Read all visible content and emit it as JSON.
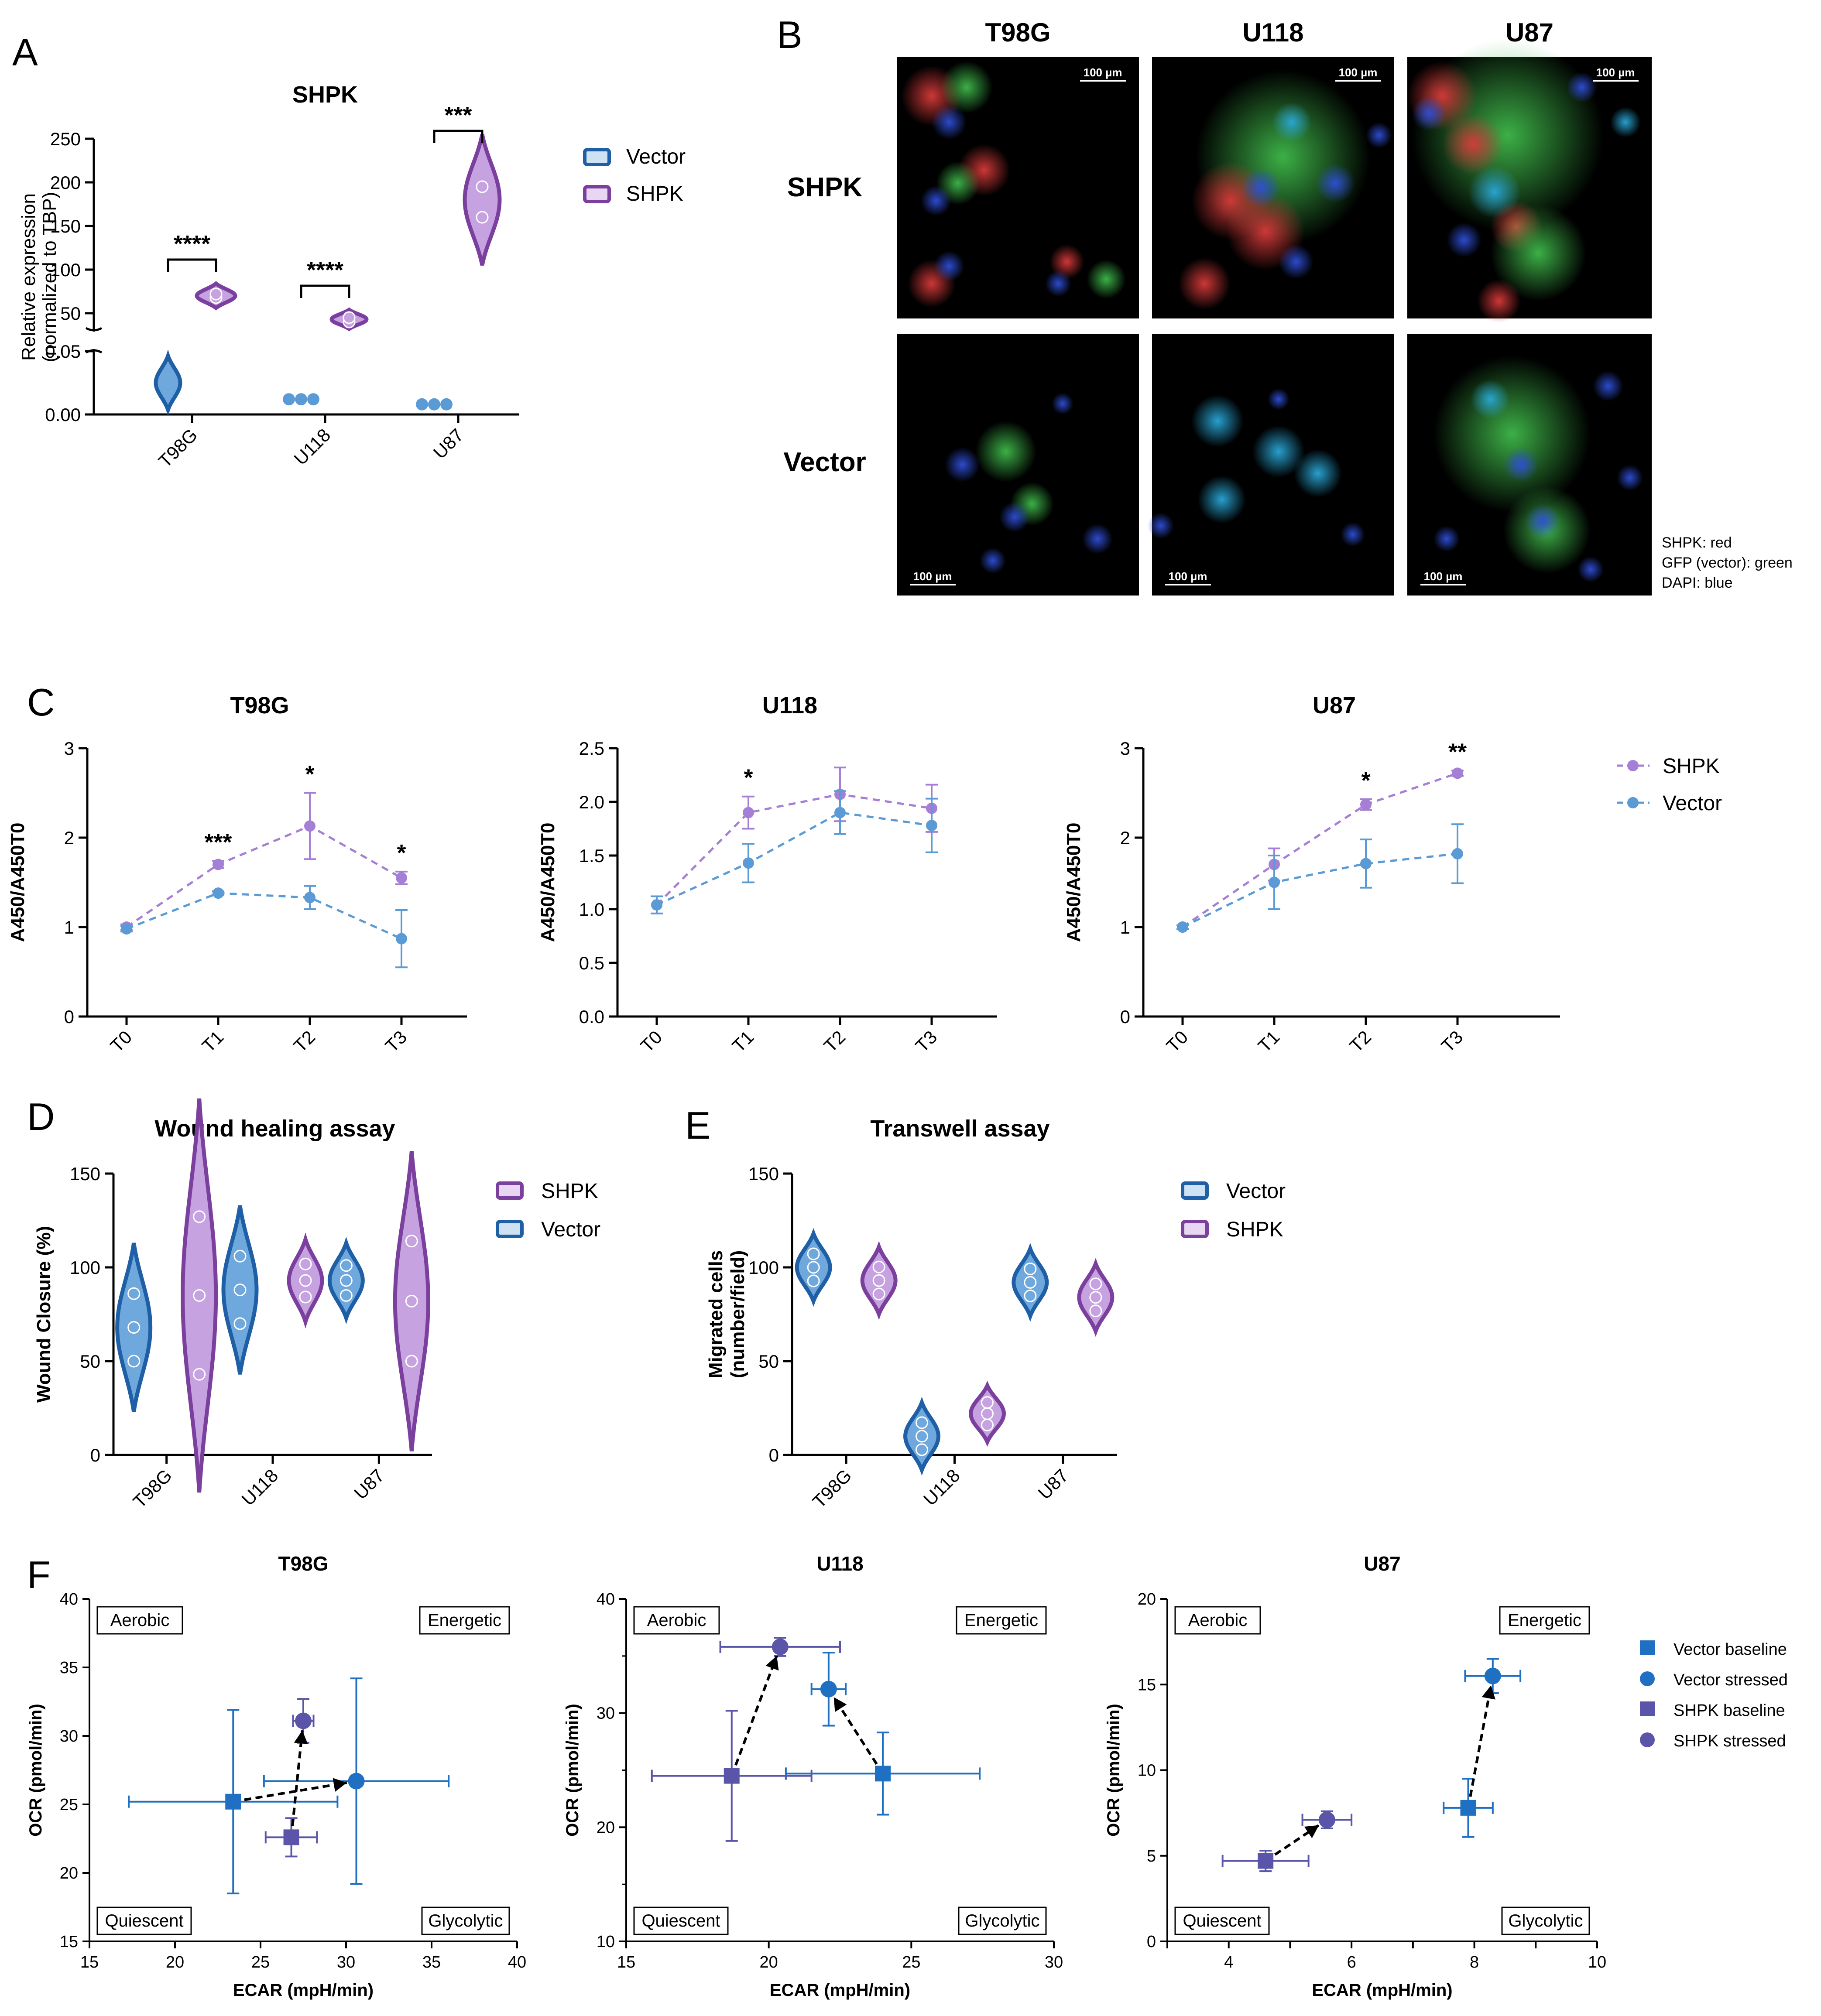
{
  "panels": {
    "A": {
      "label": "A"
    },
    "B": {
      "label": "B"
    },
    "C": {
      "label": "C"
    },
    "D": {
      "label": "D"
    },
    "E": {
      "label": "E"
    },
    "F": {
      "label": "F"
    }
  },
  "colors": {
    "vector": "#1f5fa6",
    "vector_light": "#6fa8dc",
    "shpk": "#7b3f9e",
    "shpk_light": "#c6a2e0",
    "shpk_mid": "#a57fd6",
    "vec_mid": "#5b9bd5",
    "f_vector": "#1f6fc2",
    "f_shpk": "#5a55a8"
  },
  "microscopy": {
    "columns": [
      "T98G",
      "U118",
      "U87"
    ],
    "rows": [
      "SHPK",
      "Vector"
    ],
    "scale_bar": "100 µm",
    "channels": [
      "SHPK: red",
      "GFP (vector): green",
      "DAPI: blue"
    ]
  },
  "chart_data": [
    {
      "id": "A",
      "type": "violin",
      "title": "SHPK",
      "ylabel": [
        "Relative expression",
        "(normalized to TBP)"
      ],
      "categories": [
        "T98G",
        "U118",
        "U87"
      ],
      "y_lower_ticks": [
        "0.00",
        "0.05"
      ],
      "y_upper_ticks": [
        "50",
        "100",
        "150",
        "200",
        "250"
      ],
      "legend": [
        "Vector",
        "SHPK"
      ],
      "series": [
        {
          "name": "Vector",
          "values": [
            0.025,
            0.012,
            0.008
          ]
        },
        {
          "name": "SHPK",
          "values": [
            70,
            43,
            180
          ]
        }
      ],
      "significance": [
        "****",
        "****",
        "***"
      ]
    },
    {
      "id": "C1",
      "type": "line",
      "title": "T98G",
      "ylabel": "A450/A450T0",
      "categories": [
        "T0",
        "T1",
        "T2",
        "T3"
      ],
      "ylim": [
        0,
        3
      ],
      "yticks": [
        "0",
        "1",
        "2",
        "3"
      ],
      "series": [
        {
          "name": "SHPK",
          "values": [
            1.0,
            1.7,
            2.13,
            1.55
          ],
          "err": [
            0.03,
            0.04,
            0.37,
            0.07
          ]
        },
        {
          "name": "Vector",
          "values": [
            0.98,
            1.38,
            1.33,
            0.87
          ],
          "err": [
            0.03,
            0.02,
            0.13,
            0.32
          ]
        }
      ],
      "significance": [
        "",
        "***",
        "*",
        "*"
      ]
    },
    {
      "id": "C2",
      "type": "line",
      "title": "U118",
      "ylabel": "A450/A450T0",
      "categories": [
        "T0",
        "T1",
        "T2",
        "T3"
      ],
      "ylim": [
        0,
        2.5
      ],
      "yticks": [
        "0.0",
        "0.5",
        "1.0",
        "1.5",
        "2.0",
        "2.5"
      ],
      "series": [
        {
          "name": "SHPK",
          "values": [
            1.04,
            1.9,
            2.07,
            1.94
          ],
          "err": [
            0.08,
            0.15,
            0.25,
            0.22
          ]
        },
        {
          "name": "Vector",
          "values": [
            1.04,
            1.43,
            1.9,
            1.78
          ],
          "err": [
            0.08,
            0.18,
            0.2,
            0.25
          ]
        }
      ],
      "significance": [
        "",
        "*",
        "",
        ""
      ]
    },
    {
      "id": "C3",
      "type": "line",
      "title": "U87",
      "ylabel": "A450/A450T0",
      "categories": [
        "T0",
        "T1",
        "T2",
        "T3"
      ],
      "ylim": [
        0,
        3
      ],
      "yticks": [
        "0",
        "1",
        "2",
        "3"
      ],
      "legend": [
        "SHPK",
        "Vector"
      ],
      "series": [
        {
          "name": "SHPK",
          "values": [
            1.0,
            1.7,
            2.37,
            2.72
          ],
          "err": [
            0.02,
            0.18,
            0.06,
            0.03
          ]
        },
        {
          "name": "Vector",
          "values": [
            1.0,
            1.5,
            1.71,
            1.82
          ],
          "err": [
            0.02,
            0.3,
            0.27,
            0.33
          ]
        }
      ],
      "significance": [
        "",
        "",
        "*",
        "**"
      ]
    },
    {
      "id": "D",
      "type": "violin",
      "title": "Wound healing assay",
      "ylabel": "Wound Closure (%)",
      "categories": [
        "T98G",
        "U118",
        "U87"
      ],
      "ylim": [
        0,
        150
      ],
      "yticks": [
        "0",
        "50",
        "100",
        "150"
      ],
      "legend": [
        "SHPK",
        "Vector"
      ],
      "series": [
        {
          "name": "Vector",
          "values": [
            68,
            88,
            93
          ]
        },
        {
          "name": "SHPK",
          "values": [
            85,
            93,
            82
          ]
        }
      ]
    },
    {
      "id": "E",
      "type": "violin",
      "title": "Transwell assay",
      "ylabel": [
        "Migrated cells",
        "(number/field)"
      ],
      "categories": [
        "T98G",
        "U118",
        "U87"
      ],
      "ylim": [
        0,
        150
      ],
      "yticks": [
        "0",
        "50",
        "100",
        "150"
      ],
      "legend": [
        "Vector",
        "SHPK"
      ],
      "series": [
        {
          "name": "Vector",
          "values": [
            100,
            10,
            92
          ]
        },
        {
          "name": "SHPK",
          "values": [
            93,
            22,
            84
          ]
        }
      ]
    },
    {
      "id": "F1",
      "type": "scatter",
      "title": "T98G",
      "xlabel": "ECAR (mpH/min)",
      "ylabel": "OCR (pmol/min)",
      "xlim": [
        15,
        40
      ],
      "ylim": [
        15,
        40
      ],
      "xticks": [
        "15",
        "20",
        "25",
        "30",
        "35",
        "40"
      ],
      "yticks": [
        "15",
        "20",
        "25",
        "30",
        "35",
        "40"
      ],
      "quadrants": [
        "Aerobic",
        "Energetic",
        "Quiescent",
        "Glycolytic"
      ],
      "series": [
        {
          "name": "Vector baseline",
          "x": 23.4,
          "y": 25.2,
          "xerr": 6.1,
          "yerr": 6.7
        },
        {
          "name": "Vector stressed",
          "x": 30.6,
          "y": 26.7,
          "xerr": 5.4,
          "yerr": 7.5
        },
        {
          "name": "SHPK baseline",
          "x": 26.8,
          "y": 22.6,
          "xerr": 1.5,
          "yerr": 1.4
        },
        {
          "name": "SHPK stressed",
          "x": 27.5,
          "y": 31.1,
          "xerr": 0.6,
          "yerr": 1.6
        }
      ]
    },
    {
      "id": "F2",
      "type": "scatter",
      "title": "U118",
      "xlabel": "ECAR (mpH/min)",
      "ylabel": "OCR (pmol/min)",
      "xlim": [
        15,
        30
      ],
      "ylim": [
        10,
        40
      ],
      "xticks": [
        "15",
        "20",
        "25",
        "30"
      ],
      "yticks": [
        "10",
        "20",
        "30",
        "40"
      ],
      "quadrants": [
        "Aerobic",
        "Energetic",
        "Quiescent",
        "Glycolytic"
      ],
      "series": [
        {
          "name": "Vector baseline",
          "x": 24.0,
          "y": 24.7,
          "xerr": 3.4,
          "yerr": 3.6
        },
        {
          "name": "Vector stressed",
          "x": 22.1,
          "y": 32.1,
          "xerr": 0.6,
          "yerr": 3.2
        },
        {
          "name": "SHPK baseline",
          "x": 18.7,
          "y": 24.5,
          "xerr": 2.8,
          "yerr": 5.7
        },
        {
          "name": "SHPK stressed",
          "x": 20.4,
          "y": 35.8,
          "xerr": 2.1,
          "yerr": 0.8
        }
      ]
    },
    {
      "id": "F3",
      "type": "scatter",
      "title": "U87",
      "xlabel": "ECAR (mpH/min)",
      "ylabel": "OCR (pmol/min)",
      "xlim": [
        3,
        10
      ],
      "ylim": [
        0,
        20
      ],
      "xticks": [
        "4",
        "6",
        "8",
        "10"
      ],
      "yticks": [
        "0",
        "5",
        "10",
        "15",
        "20"
      ],
      "quadrants": [
        "Aerobic",
        "Energetic",
        "Quiescent",
        "Glycolytic"
      ],
      "legend": [
        "Vector baseline",
        "Vector stressed",
        "SHPK baseline",
        "SHPK stressed"
      ],
      "series": [
        {
          "name": "Vector baseline",
          "x": 7.9,
          "y": 7.8,
          "xerr": 0.4,
          "yerr": 1.7
        },
        {
          "name": "Vector stressed",
          "x": 8.3,
          "y": 15.5,
          "xerr": 0.45,
          "yerr": 1.0
        },
        {
          "name": "SHPK baseline",
          "x": 4.6,
          "y": 4.7,
          "xerr": 0.7,
          "yerr": 0.6
        },
        {
          "name": "SHPK stressed",
          "x": 5.6,
          "y": 7.1,
          "xerr": 0.4,
          "yerr": 0.5
        }
      ]
    }
  ]
}
